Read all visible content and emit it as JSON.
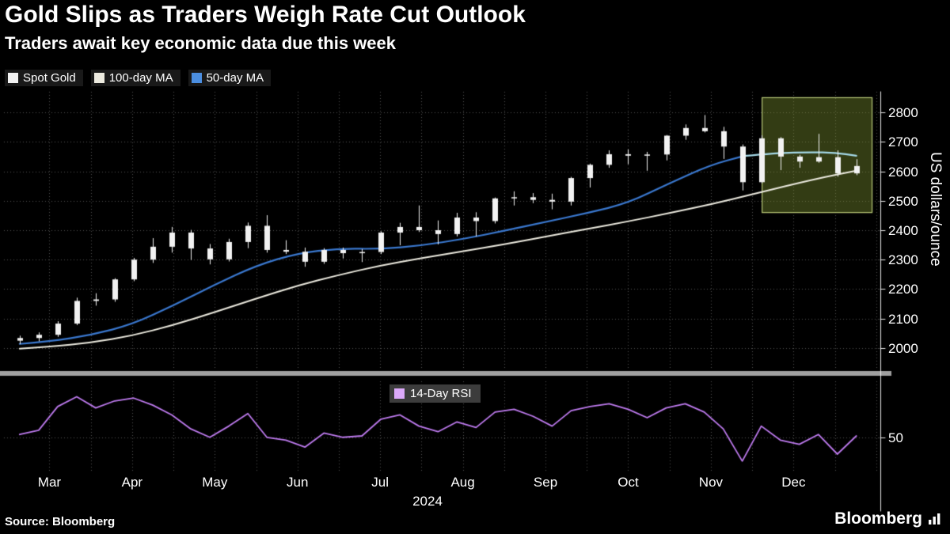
{
  "header": {
    "title": "Gold Slips as Traders Weigh Rate Cut Outlook",
    "subtitle": "Traders await key economic data due this week"
  },
  "legend": {
    "items": [
      {
        "label": "Spot Gold",
        "color": "#f2f2f2"
      },
      {
        "label": "100-day MA",
        "color": "#eceadf"
      },
      {
        "label": "50-day MA",
        "color": "#4b8ee0"
      }
    ]
  },
  "rsi_legend": {
    "label": "14-Day RSI",
    "color": "#dca9fa"
  },
  "axis": {
    "y_unit": "US dollars/ounce",
    "y_ticks": [
      2800,
      2700,
      2600,
      2500,
      2400,
      2300,
      2200,
      2100,
      2000
    ],
    "rsi_tick": 50,
    "months": [
      "Mar",
      "Apr",
      "May",
      "Jun",
      "Jul",
      "Aug",
      "Sep",
      "Oct",
      "Nov",
      "Dec"
    ],
    "year": "2024"
  },
  "footer": {
    "source": "Source: Bloomberg",
    "brand": "Bloomberg"
  },
  "colors": {
    "background": "#000000",
    "text": "#ffffff",
    "grid": "#505050",
    "candle": "#f2f2f2",
    "ma100": "#eceadf",
    "ma50": "#3a78cf",
    "ma50_recent": "#a5d9e8",
    "rsi": "#bf7bf0",
    "separator": "#a0a0a0",
    "axis_line": "#e8e8e8",
    "highlight_fill": "rgba(135,158,52,0.38)",
    "highlight_border": "#b9c878"
  },
  "chart_data": [
    {
      "type": "candlestick",
      "panel": "price",
      "title": "Gold Slips as Traders Weigh Rate Cut Outlook",
      "ylabel": "US dollars/ounce",
      "ylim": [
        1930,
        2870
      ],
      "x_unit": "months from Mar 1 2024 (Mar=0 ... Dec=9), weekly bars",
      "grid": true,
      "candles": [
        [
          -0.36,
          2025,
          2041,
          2014,
          2034
        ],
        [
          -0.13,
          2034,
          2052,
          2024,
          2045
        ],
        [
          0.1,
          2045,
          2090,
          2039,
          2083
        ],
        [
          0.33,
          2083,
          2170,
          2079,
          2160
        ],
        [
          0.56,
          2160,
          2185,
          2145,
          2165
        ],
        [
          0.79,
          2165,
          2236,
          2158,
          2233
        ],
        [
          1.02,
          2233,
          2305,
          2228,
          2300
        ],
        [
          1.25,
          2300,
          2372,
          2290,
          2344
        ],
        [
          1.48,
          2344,
          2410,
          2325,
          2392
        ],
        [
          1.71,
          2392,
          2400,
          2300,
          2338
        ],
        [
          1.94,
          2338,
          2352,
          2285,
          2301
        ],
        [
          2.17,
          2301,
          2370,
          2295,
          2360
        ],
        [
          2.4,
          2360,
          2425,
          2340,
          2415
        ],
        [
          2.63,
          2415,
          2450,
          2325,
          2333
        ],
        [
          2.86,
          2333,
          2365,
          2320,
          2327
        ],
        [
          3.09,
          2327,
          2340,
          2277,
          2293
        ],
        [
          3.32,
          2293,
          2338,
          2287,
          2333
        ],
        [
          3.55,
          2333,
          2340,
          2305,
          2322
        ],
        [
          3.78,
          2322,
          2335,
          2293,
          2326
        ],
        [
          4.01,
          2326,
          2395,
          2320,
          2392
        ],
        [
          4.24,
          2392,
          2424,
          2350,
          2411
        ],
        [
          4.47,
          2411,
          2483,
          2395,
          2400
        ],
        [
          4.7,
          2400,
          2432,
          2353,
          2387
        ],
        [
          4.93,
          2387,
          2458,
          2380,
          2443
        ],
        [
          5.16,
          2443,
          2460,
          2380,
          2431
        ],
        [
          5.39,
          2431,
          2510,
          2424,
          2508
        ],
        [
          5.62,
          2508,
          2531,
          2485,
          2512
        ],
        [
          5.85,
          2512,
          2525,
          2493,
          2503
        ],
        [
          6.08,
          2503,
          2523,
          2472,
          2497
        ],
        [
          6.31,
          2497,
          2580,
          2485,
          2577
        ],
        [
          6.54,
          2577,
          2625,
          2546,
          2622
        ],
        [
          6.77,
          2622,
          2670,
          2613,
          2658
        ],
        [
          7.0,
          2658,
          2673,
          2625,
          2653
        ],
        [
          7.23,
          2653,
          2665,
          2603,
          2657
        ],
        [
          7.46,
          2657,
          2722,
          2638,
          2721
        ],
        [
          7.69,
          2721,
          2758,
          2708,
          2747
        ],
        [
          7.92,
          2747,
          2790,
          2733,
          2736
        ],
        [
          8.15,
          2736,
          2750,
          2643,
          2684
        ],
        [
          8.38,
          2684,
          2690,
          2536,
          2563
        ],
        [
          8.61,
          2563,
          2721,
          2560,
          2712
        ],
        [
          8.84,
          2712,
          2715,
          2605,
          2650
        ],
        [
          9.07,
          2650,
          2655,
          2613,
          2633
        ],
        [
          9.3,
          2633,
          2726,
          2630,
          2648
        ],
        [
          9.53,
          2648,
          2670,
          2583,
          2593
        ],
        [
          9.76,
          2593,
          2640,
          2588,
          2618
        ]
      ],
      "series": [
        {
          "name": "100-day MA",
          "points": [
            [
              -0.36,
              1998
            ],
            [
              0,
              2005
            ],
            [
              0.5,
              2018
            ],
            [
              1,
              2042
            ],
            [
              1.5,
              2078
            ],
            [
              2,
              2122
            ],
            [
              2.5,
              2168
            ],
            [
              3,
              2212
            ],
            [
              3.5,
              2248
            ],
            [
              4,
              2280
            ],
            [
              4.5,
              2305
            ],
            [
              5,
              2328
            ],
            [
              5.5,
              2352
            ],
            [
              6,
              2378
            ],
            [
              6.5,
              2404
            ],
            [
              7,
              2430
            ],
            [
              7.5,
              2458
            ],
            [
              8,
              2488
            ],
            [
              8.5,
              2522
            ],
            [
              9,
              2556
            ],
            [
              9.4,
              2582
            ],
            [
              9.76,
              2602
            ]
          ]
        },
        {
          "name": "50-day MA",
          "points": [
            [
              -0.36,
              2014
            ],
            [
              0,
              2022
            ],
            [
              0.5,
              2044
            ],
            [
              1,
              2080
            ],
            [
              1.5,
              2145
            ],
            [
              2,
              2215
            ],
            [
              2.5,
              2280
            ],
            [
              3,
              2322
            ],
            [
              3.5,
              2338
            ],
            [
              4,
              2336
            ],
            [
              4.5,
              2348
            ],
            [
              5,
              2370
            ],
            [
              5.5,
              2398
            ],
            [
              6,
              2428
            ],
            [
              6.5,
              2458
            ],
            [
              7,
              2492
            ],
            [
              7.5,
              2560
            ],
            [
              8,
              2622
            ],
            [
              8.4,
              2652
            ],
            [
              8.8,
              2662
            ],
            [
              9.2,
              2665
            ],
            [
              9.5,
              2663
            ],
            [
              9.76,
              2653
            ]
          ]
        }
      ],
      "highlight_box": {
        "x0": 8.62,
        "x1": 9.95,
        "y0": 2460,
        "y1": 2850
      }
    },
    {
      "type": "line",
      "panel": "rsi",
      "name": "14-Day RSI",
      "ylim": [
        25,
        90
      ],
      "ticks": [
        50
      ],
      "points": [
        [
          -0.36,
          52
        ],
        [
          -0.13,
          55
        ],
        [
          0.1,
          72
        ],
        [
          0.33,
          79
        ],
        [
          0.56,
          71
        ],
        [
          0.79,
          76
        ],
        [
          1.02,
          78
        ],
        [
          1.25,
          73
        ],
        [
          1.48,
          66
        ],
        [
          1.71,
          56
        ],
        [
          1.94,
          50
        ],
        [
          2.17,
          58
        ],
        [
          2.4,
          67
        ],
        [
          2.63,
          50
        ],
        [
          2.86,
          48
        ],
        [
          3.09,
          43
        ],
        [
          3.32,
          53
        ],
        [
          3.55,
          50
        ],
        [
          3.78,
          51
        ],
        [
          4.01,
          63
        ],
        [
          4.24,
          66
        ],
        [
          4.47,
          58
        ],
        [
          4.7,
          54
        ],
        [
          4.93,
          61
        ],
        [
          5.16,
          57
        ],
        [
          5.39,
          68
        ],
        [
          5.62,
          70
        ],
        [
          5.85,
          65
        ],
        [
          6.08,
          58
        ],
        [
          6.31,
          69
        ],
        [
          6.54,
          72
        ],
        [
          6.77,
          74
        ],
        [
          7.0,
          70
        ],
        [
          7.23,
          64
        ],
        [
          7.46,
          71
        ],
        [
          7.69,
          74
        ],
        [
          7.92,
          68
        ],
        [
          8.15,
          56
        ],
        [
          8.38,
          33
        ],
        [
          8.61,
          58
        ],
        [
          8.84,
          48
        ],
        [
          9.07,
          45
        ],
        [
          9.3,
          52
        ],
        [
          9.53,
          38
        ],
        [
          9.76,
          51
        ]
      ]
    }
  ]
}
